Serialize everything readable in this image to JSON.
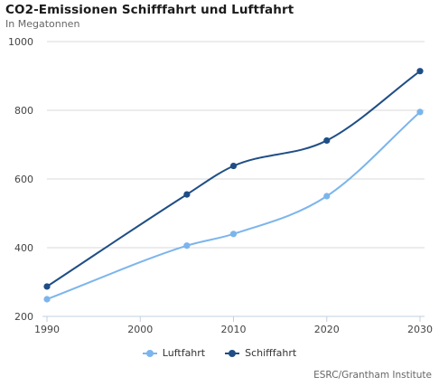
{
  "title": "CO2-Emissionen Schifffahrt und Luftfahrt",
  "subtitle": "In Megatonnen",
  "source": "ESRC/Grantham Institute",
  "chart_data": {
    "type": "line",
    "title": "CO2-Emissionen Schifffahrt und Luftfahrt",
    "subtitle": "In Megatonnen",
    "xlabel": "",
    "ylabel": "",
    "x": [
      1990,
      2005,
      2010,
      2020,
      2030
    ],
    "xticks": [
      1990,
      2000,
      2010,
      2020,
      2030
    ],
    "yticks": [
      200,
      400,
      600,
      800,
      1000
    ],
    "xlim": [
      1990,
      2030
    ],
    "ylim": [
      200,
      1000
    ],
    "grid": "horizontal",
    "legend": "bottom",
    "series": [
      {
        "name": "Luftfahrt",
        "color": "#7cb5ec",
        "values": [
          250,
          406,
          440,
          550,
          795
        ]
      },
      {
        "name": "Schifffahrt",
        "color": "#1f4e86",
        "values": [
          287,
          555,
          638,
          712,
          914
        ]
      }
    ]
  }
}
